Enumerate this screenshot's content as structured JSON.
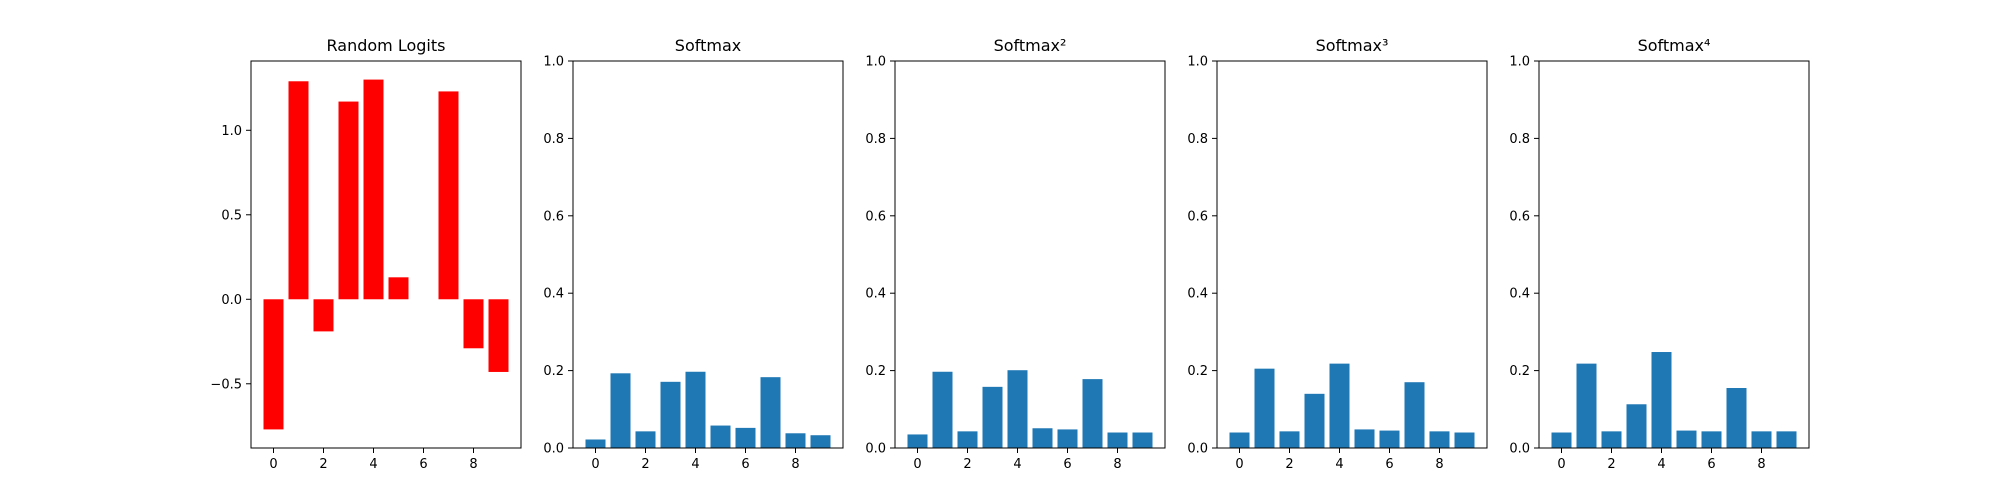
{
  "chart_data": [
    {
      "type": "bar",
      "title": "Random Logits",
      "xlabel": "",
      "ylabel": "",
      "x": [
        0,
        1,
        2,
        3,
        4,
        5,
        6,
        7,
        8,
        9
      ],
      "values": [
        -0.77,
        1.29,
        -0.19,
        1.17,
        1.3,
        0.13,
        0.0,
        1.23,
        -0.29,
        -0.43
      ],
      "color": "#ff0000",
      "ylim": [
        -0.88,
        1.41
      ],
      "xlim": [
        -0.9,
        9.9
      ],
      "yticks": [
        -0.5,
        0.0,
        0.5,
        1.0
      ],
      "ytick_labels": [
        "−0.5",
        "0.0",
        "0.5",
        "1.0"
      ],
      "xticks": [
        0,
        2,
        4,
        6,
        8
      ],
      "xtick_labels": [
        "0",
        "2",
        "4",
        "6",
        "8"
      ],
      "grid": false
    },
    {
      "type": "bar",
      "title": "Softmax",
      "xlabel": "",
      "ylabel": "",
      "x": [
        0,
        1,
        2,
        3,
        4,
        5,
        6,
        7,
        8,
        9
      ],
      "values": [
        0.022,
        0.193,
        0.043,
        0.171,
        0.197,
        0.058,
        0.052,
        0.183,
        0.038,
        0.033
      ],
      "color": "#1f77b4",
      "ylim": [
        0,
        1.0
      ],
      "xlim": [
        -0.9,
        9.9
      ],
      "yticks": [
        0.0,
        0.2,
        0.4,
        0.6,
        0.8,
        1.0
      ],
      "ytick_labels": [
        "0.0",
        "0.2",
        "0.4",
        "0.6",
        "0.8",
        "1.0"
      ],
      "xticks": [
        0,
        2,
        4,
        6,
        8
      ],
      "xtick_labels": [
        "0",
        "2",
        "4",
        "6",
        "8"
      ],
      "grid": false
    },
    {
      "type": "bar",
      "title": "Softmax²",
      "xlabel": "",
      "ylabel": "",
      "x": [
        0,
        1,
        2,
        3,
        4,
        5,
        6,
        7,
        8,
        9
      ],
      "values": [
        0.035,
        0.197,
        0.043,
        0.158,
        0.201,
        0.051,
        0.048,
        0.178,
        0.04,
        0.04
      ],
      "color": "#1f77b4",
      "ylim": [
        0,
        1.0
      ],
      "xlim": [
        -0.9,
        9.9
      ],
      "yticks": [
        0.0,
        0.2,
        0.4,
        0.6,
        0.8,
        1.0
      ],
      "ytick_labels": [
        "0.0",
        "0.2",
        "0.4",
        "0.6",
        "0.8",
        "1.0"
      ],
      "xticks": [
        0,
        2,
        4,
        6,
        8
      ],
      "xtick_labels": [
        "0",
        "2",
        "4",
        "6",
        "8"
      ],
      "grid": false
    },
    {
      "type": "bar",
      "title": "Softmax³",
      "xlabel": "",
      "ylabel": "",
      "x": [
        0,
        1,
        2,
        3,
        4,
        5,
        6,
        7,
        8,
        9
      ],
      "values": [
        0.04,
        0.205,
        0.043,
        0.14,
        0.218,
        0.048,
        0.045,
        0.17,
        0.043,
        0.04
      ],
      "color": "#1f77b4",
      "ylim": [
        0,
        1.0
      ],
      "xlim": [
        -0.9,
        9.9
      ],
      "yticks": [
        0.0,
        0.2,
        0.4,
        0.6,
        0.8,
        1.0
      ],
      "ytick_labels": [
        "0.0",
        "0.2",
        "0.4",
        "0.6",
        "0.8",
        "1.0"
      ],
      "xticks": [
        0,
        2,
        4,
        6,
        8
      ],
      "xtick_labels": [
        "0",
        "2",
        "4",
        "6",
        "8"
      ],
      "grid": false
    },
    {
      "type": "bar",
      "title": "Softmax⁴",
      "xlabel": "",
      "ylabel": "",
      "x": [
        0,
        1,
        2,
        3,
        4,
        5,
        6,
        7,
        8,
        9
      ],
      "values": [
        0.04,
        0.218,
        0.043,
        0.113,
        0.248,
        0.045,
        0.043,
        0.155,
        0.043,
        0.043
      ],
      "color": "#1f77b4",
      "ylim": [
        0,
        1.0
      ],
      "xlim": [
        -0.9,
        9.9
      ],
      "yticks": [
        0.0,
        0.2,
        0.4,
        0.6,
        0.8,
        1.0
      ],
      "ytick_labels": [
        "0.0",
        "0.2",
        "0.4",
        "0.6",
        "0.8",
        "1.0"
      ],
      "xticks": [
        0,
        2,
        4,
        6,
        8
      ],
      "xtick_labels": [
        "0",
        "2",
        "4",
        "6",
        "8"
      ],
      "grid": false
    }
  ]
}
